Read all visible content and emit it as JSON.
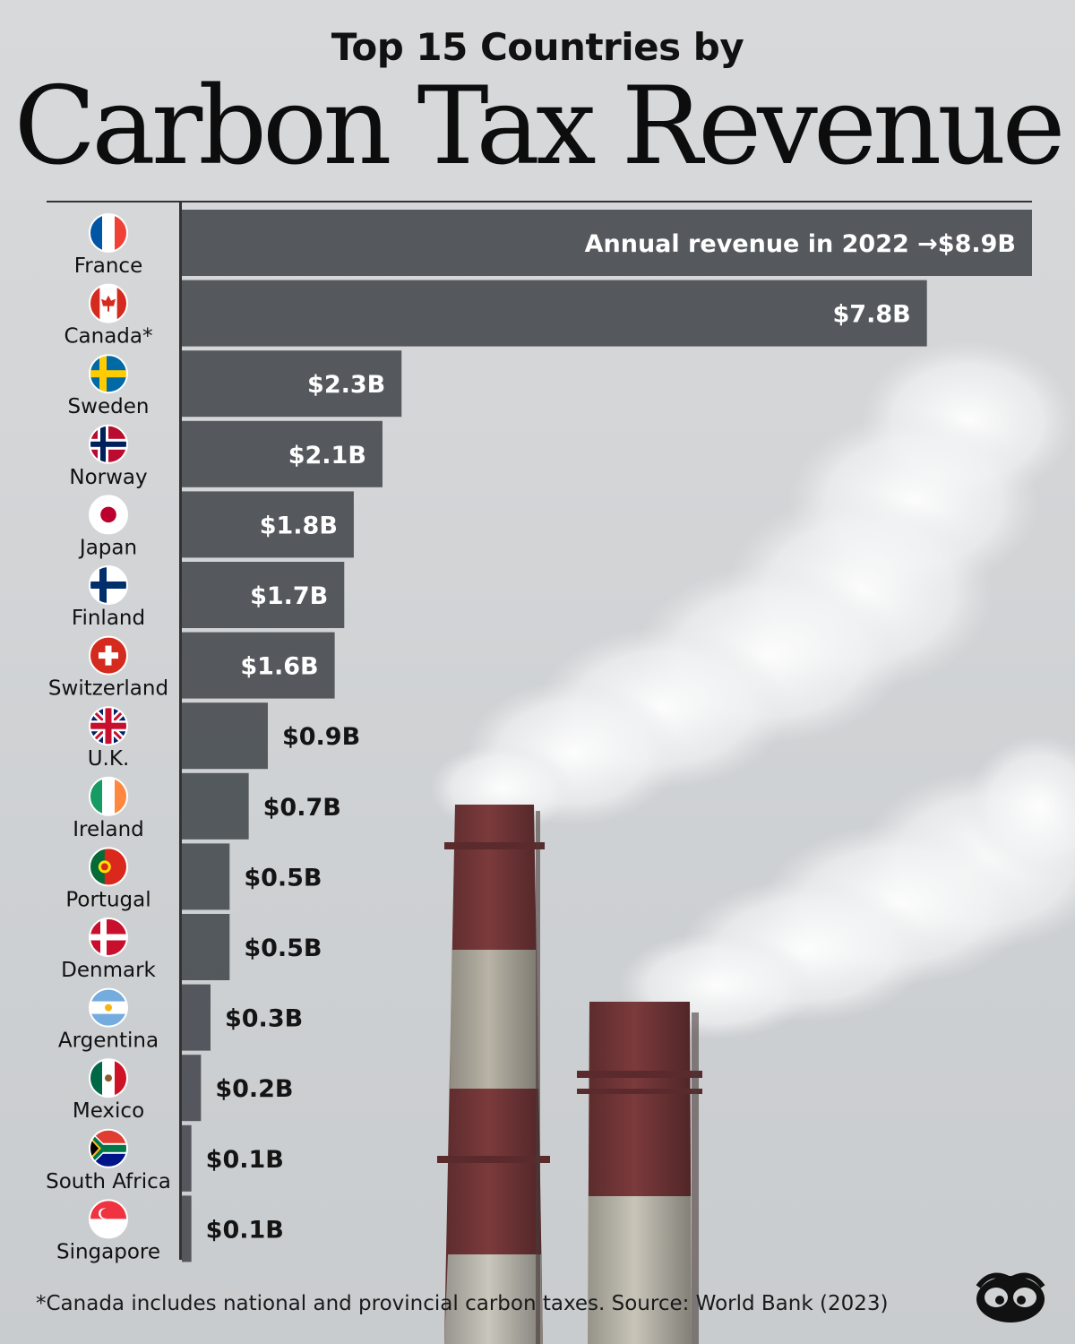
{
  "header": {
    "subtitle": "Top 15 Countries by",
    "title": "Carbon Tax Revenue"
  },
  "annotation": "Annual revenue in 2022 →",
  "footnote": "*Canada includes national and provincial carbon taxes. Source: World Bank (2023)",
  "colors": {
    "bar": "#4a4e54",
    "text": "#111111",
    "bar_label": "#ffffff"
  },
  "chart_data": {
    "type": "bar",
    "orientation": "horizontal",
    "categories": [
      "France",
      "Canada*",
      "Sweden",
      "Norway",
      "Japan",
      "Finland",
      "Switzerland",
      "U.K.",
      "Ireland",
      "Portugal",
      "Denmark",
      "Argentina",
      "Mexico",
      "South Africa",
      "Singapore"
    ],
    "values": [
      8.9,
      7.8,
      2.3,
      2.1,
      1.8,
      1.7,
      1.6,
      0.9,
      0.7,
      0.5,
      0.5,
      0.3,
      0.2,
      0.1,
      0.1
    ],
    "value_labels": [
      "$8.9B",
      "$7.8B",
      "$2.3B",
      "$2.1B",
      "$1.8B",
      "$1.7B",
      "$1.6B",
      "$0.9B",
      "$0.7B",
      "$0.5B",
      "$0.5B",
      "$0.3B",
      "$0.2B",
      "$0.1B",
      "$0.1B"
    ],
    "flag_icons": [
      "flag-france-icon",
      "flag-canada-icon",
      "flag-sweden-icon",
      "flag-norway-icon",
      "flag-japan-icon",
      "flag-finland-icon",
      "flag-switzerland-icon",
      "flag-uk-icon",
      "flag-ireland-icon",
      "flag-portugal-icon",
      "flag-denmark-icon",
      "flag-argentina-icon",
      "flag-mexico-icon",
      "flag-south-africa-icon",
      "flag-singapore-icon"
    ],
    "unit": "USD billions",
    "xlim": [
      0,
      8.9
    ],
    "grid": false,
    "legend": "none"
  }
}
